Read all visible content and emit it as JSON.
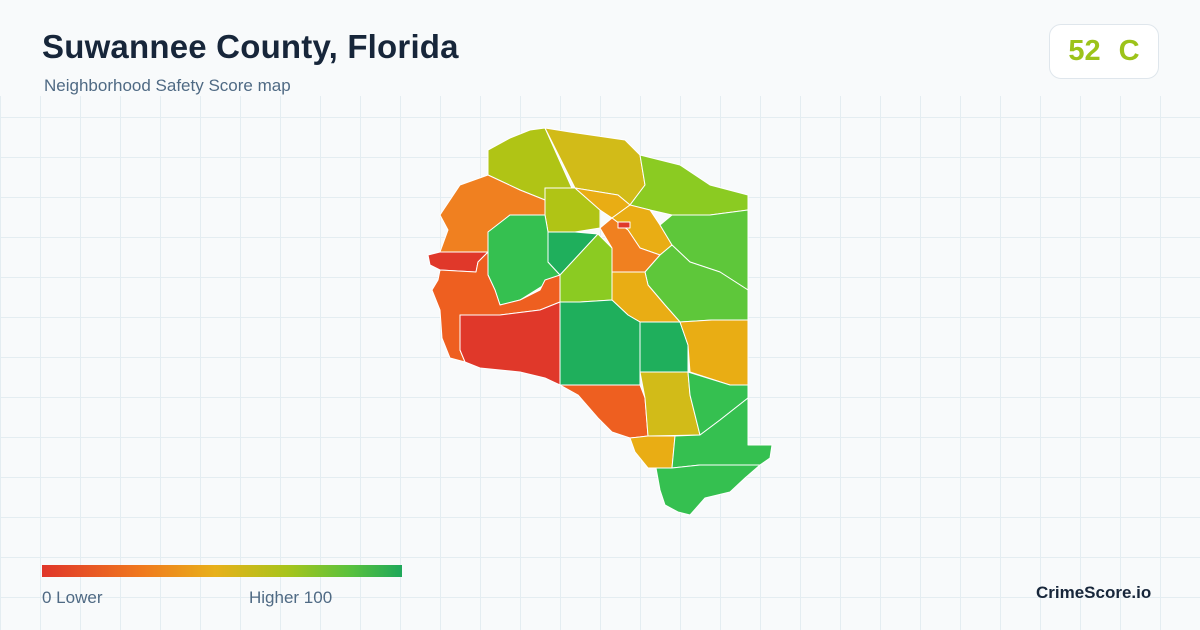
{
  "header": {
    "title": "Suwannee County, Florida",
    "subtitle": "Neighborhood Safety Score map"
  },
  "score": {
    "value": "52",
    "grade": "C",
    "color": "#9cc31a"
  },
  "legend": {
    "low_label": "0  Lower",
    "high_label": "Higher  100",
    "low_color": "#e0362a",
    "high_color": "#1fa85a"
  },
  "brand": {
    "name": "CrimeScore.io"
  },
  "map_colors": {
    "red": "#e0382a",
    "orange_red": "#ee5f20",
    "orange": "#f08020",
    "amber": "#e9ad14",
    "olive": "#d2bb18",
    "yellow_green": "#b0c415",
    "lime": "#8bcb22",
    "green": "#5ec73a",
    "green_mid": "#35c050",
    "green_dark": "#1faf5c"
  }
}
